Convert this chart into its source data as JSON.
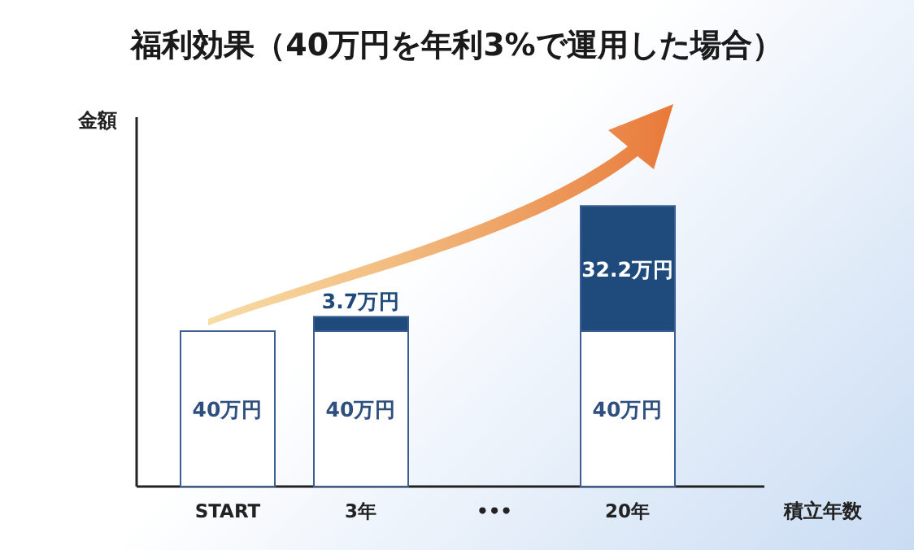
{
  "chart_data": {
    "type": "bar",
    "title": "福利効果（40万円を年利3%で運用した場合）",
    "xlabel": "積立年数",
    "ylabel": "金額",
    "stacked": true,
    "categories": [
      "START",
      "3年",
      "•••",
      "20年"
    ],
    "series": [
      {
        "color": "#ffffff",
        "values": [
          40,
          40,
          null,
          40
        ],
        "value_labels": [
          "40万円",
          "40万円",
          null,
          "40万円"
        ]
      },
      {
        "color": "#1f4a7c",
        "values": [
          null,
          3.7,
          null,
          32.2
        ],
        "value_labels": [
          null,
          "3.7万円",
          null,
          "32.2万円"
        ]
      }
    ]
  }
}
